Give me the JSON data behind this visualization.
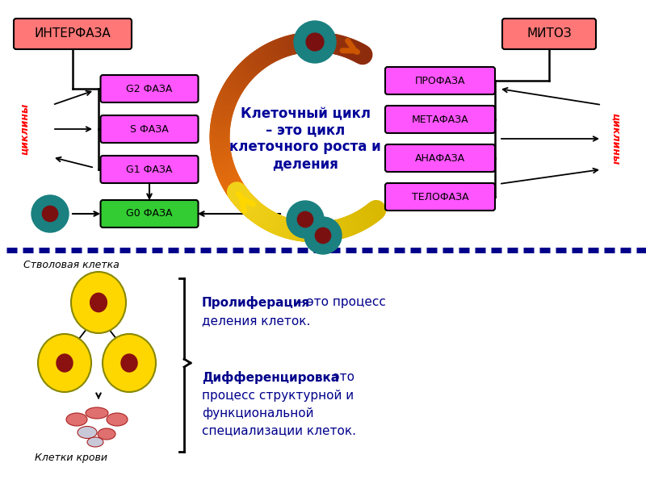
{
  "bg_color": "#ffffff",
  "title_text": "Клеточный цикл\n– это цикл\nклеточного роста и\nделения",
  "interfaza_label": "ИНТЕРФАЗА",
  "mitoz_label": "МИТОЗ",
  "left_phases": [
    "G2 ФАЗА",
    "S ФАЗА",
    "G1 ФАЗА",
    "G0 ФАЗА"
  ],
  "right_phases": [
    "ПРОФАЗА",
    "МЕТАФАЗА",
    "АНАФАЗА",
    "ТЕЛОФАЗА"
  ],
  "left_phase_colors": [
    "#ff55ff",
    "#ff55ff",
    "#ff55ff",
    "#33cc33"
  ],
  "right_phase_colors": [
    "#ff55ff",
    "#ff55ff",
    "#ff55ff",
    "#ff55ff"
  ],
  "header_color": "#ff7777",
  "cyclins_color": "#ff0000",
  "cyclins_left": "циклины",
  "cyclins_right": "циклины",
  "dash_color": "#00008B",
  "stem_cell_label": "Стволовая клетка",
  "blood_cell_label": "Клетки крови",
  "proliferation_bold": "Пролиферация",
  "proliferation_rest": " – это процесс\nделения клеток.",
  "differentiation_bold": "Дифференцировка",
  "differentiation_rest": " – это\nпроцесс структурной и\nфункциональной\nспециализации клеток.",
  "text_color": "#00008B",
  "teal_outer": "#1a8080",
  "teal_inner": "#7a1010",
  "yellow_outer": "#FFD700",
  "yellow_inner": "#8B1010",
  "arrow_orange": "#E87820",
  "arrow_brown": "#994400",
  "arrow_yellow": "#FFD700",
  "arrow_olive": "#b8a000"
}
